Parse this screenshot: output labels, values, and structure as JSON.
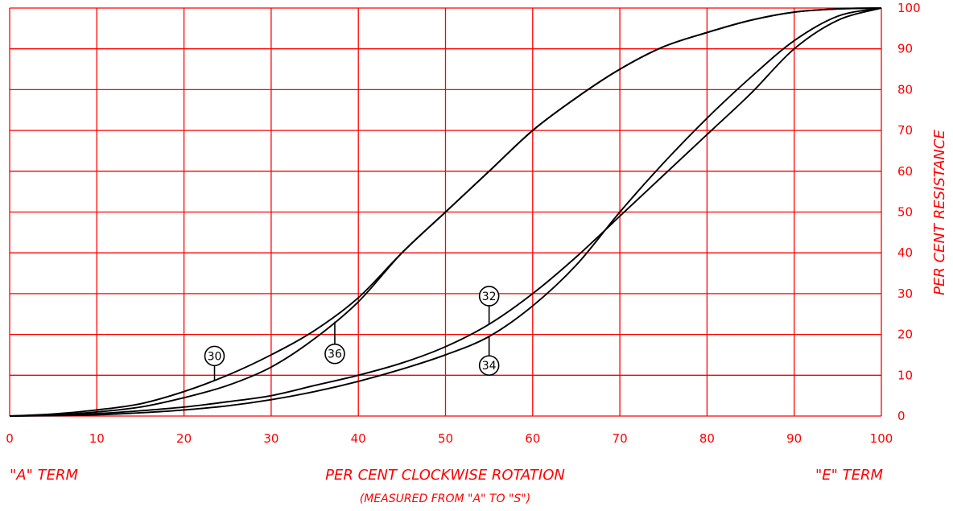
{
  "chart_data": {
    "type": "line",
    "x_label": "PER CENT CLOCKWISE ROTATION",
    "x_sublabel": "(MEASURED FROM \"A\" TO \"S\")",
    "y_label": "PER CENT RESISTANCE",
    "left_end_label": "\"A\" TERM",
    "right_end_label": "\"E\" TERM",
    "x_ticks": [
      "0",
      "10",
      "20",
      "30",
      "40",
      "50",
      "60",
      "70",
      "80",
      "90",
      "100"
    ],
    "y_ticks": [
      "0",
      "10",
      "20",
      "30",
      "40",
      "50",
      "60",
      "70",
      "80",
      "90",
      "100"
    ],
    "xlim": [
      0,
      100
    ],
    "ylim": [
      0,
      100
    ],
    "grid": true,
    "grid_color": "#ff0000",
    "curve_color": "#000000",
    "y_axis_side": "right",
    "series": [
      {
        "name": "30",
        "x": [
          0,
          5,
          10,
          15,
          20,
          25,
          30,
          35,
          40,
          45,
          50,
          55,
          60,
          65,
          70,
          75,
          80,
          85,
          90,
          95,
          100
        ],
        "y": [
          0,
          0.5,
          1.5,
          3,
          6,
          10,
          15,
          21,
          29,
          40,
          50,
          60,
          70,
          78,
          85,
          90.5,
          94,
          97,
          99,
          99.8,
          100
        ]
      },
      {
        "name": "36",
        "x": [
          0,
          5,
          10,
          15,
          20,
          25,
          30,
          35,
          40,
          45,
          50,
          55,
          60,
          65,
          70,
          75,
          80,
          85,
          90,
          95,
          100
        ],
        "y": [
          0,
          0.3,
          1,
          2.2,
          4.5,
          7.5,
          12,
          19,
          28,
          40,
          50,
          60,
          70,
          78,
          85,
          90.5,
          94,
          97,
          99,
          99.8,
          100
        ]
      },
      {
        "name": "32",
        "x": [
          0,
          5,
          10,
          15,
          20,
          25,
          30,
          35,
          40,
          45,
          50,
          55,
          60,
          65,
          70,
          75,
          80,
          85,
          90,
          95,
          100
        ],
        "y": [
          0,
          0.2,
          0.6,
          1.3,
          2.2,
          3.5,
          5,
          7.5,
          10,
          13,
          17,
          22.5,
          30,
          39,
          49,
          59,
          69,
          79,
          90,
          97,
          100
        ]
      },
      {
        "name": "34",
        "x": [
          0,
          5,
          10,
          15,
          20,
          25,
          30,
          35,
          40,
          45,
          50,
          55,
          60,
          65,
          70,
          75,
          80,
          85,
          90,
          95,
          100
        ],
        "y": [
          0,
          0.1,
          0.3,
          0.8,
          1.5,
          2.5,
          4,
          6,
          8.5,
          11.5,
          15,
          19.5,
          27,
          37,
          50,
          62,
          73,
          83,
          92,
          98,
          100
        ]
      }
    ]
  }
}
